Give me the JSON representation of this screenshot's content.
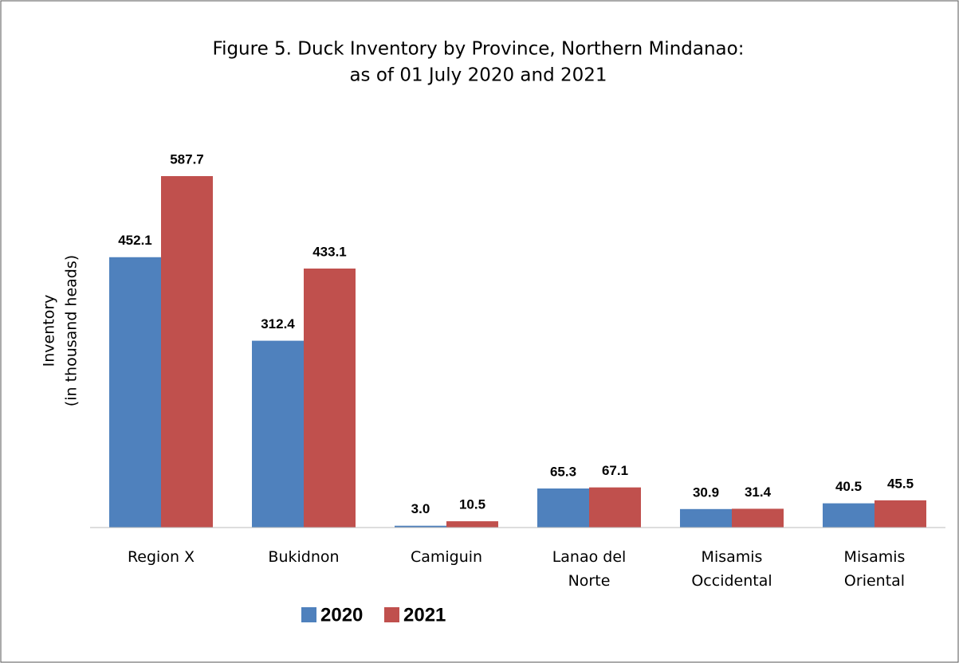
{
  "chart_data": {
    "type": "bar",
    "title": "Figure 5. Duck Inventory by Province, Northern Mindanao:",
    "subtitle": "as of 01 July 2020 and 2021",
    "ylabel": [
      "Inventory",
      "(in thousand heads)"
    ],
    "categories": [
      "Region X",
      "Bukidnon",
      "Camiguin",
      "Lanao del Norte",
      "Misamis Occidental",
      "Misamis Oriental"
    ],
    "series": [
      {
        "name": "2020",
        "color": "#4f81bd",
        "values": [
          452.1,
          312.4,
          3.0,
          65.3,
          30.9,
          40.5
        ],
        "value_labels": [
          "452.1",
          "312.4",
          "3.0",
          "65.3",
          "30.9",
          "40.5"
        ]
      },
      {
        "name": "2021",
        "color": "#c0504d",
        "values": [
          587.7,
          433.1,
          10.5,
          67.1,
          31.4,
          45.5
        ],
        "value_labels": [
          "587.7",
          "433.1",
          "10.5",
          "67.1",
          "31.4",
          "45.5"
        ]
      }
    ],
    "legend": "bottom"
  }
}
